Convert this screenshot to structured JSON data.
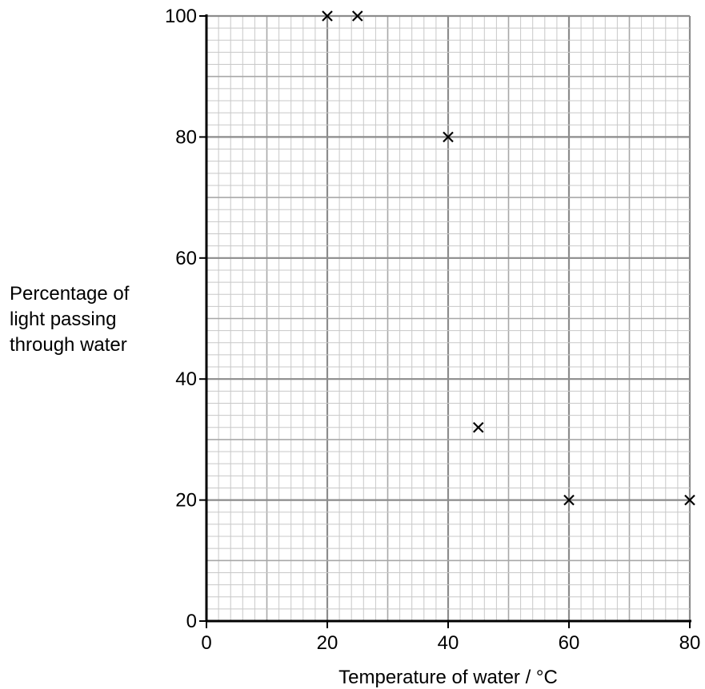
{
  "chart_data": {
    "type": "scatter",
    "title": "",
    "xlabel": "Temperature of water / °C",
    "ylabel": [
      "Percentage of",
      "light passing",
      "through water"
    ],
    "xlim": [
      0,
      80
    ],
    "ylim": [
      0,
      100
    ],
    "xticks": [
      0,
      20,
      40,
      60,
      80
    ],
    "yticks": [
      0,
      20,
      40,
      60,
      80,
      100
    ],
    "xtick_labels": [
      "0",
      "20",
      "40",
      "60",
      "80"
    ],
    "ytick_labels": [
      "0",
      "20",
      "40",
      "60",
      "80",
      "100"
    ],
    "grid": true,
    "marker": "x",
    "points": [
      {
        "x": 20,
        "y": 100
      },
      {
        "x": 25,
        "y": 100
      },
      {
        "x": 40,
        "y": 80
      },
      {
        "x": 45,
        "y": 32
      },
      {
        "x": 60,
        "y": 20
      },
      {
        "x": 80,
        "y": 20
      }
    ]
  }
}
